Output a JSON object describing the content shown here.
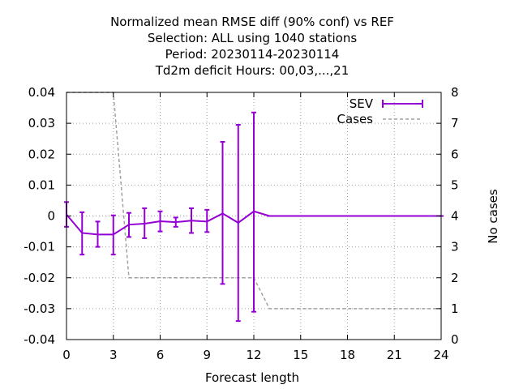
{
  "chart_data": {
    "type": "line",
    "title_lines": [
      "Normalized mean RMSE diff (90% conf) vs REF",
      "Selection: ALL using  1040 stations",
      "Period: 20230114-20230114",
      "Td2m deficit   Hours:  00,03,...,21"
    ],
    "xlabel": "Forecast length",
    "ylabel_right": "No cases",
    "xlim": [
      0,
      24
    ],
    "ylim": [
      -0.04,
      0.04
    ],
    "y2lim": [
      0,
      8
    ],
    "xticks": [
      "0",
      "3",
      "6",
      "9",
      "12",
      "15",
      "18",
      "21",
      "24"
    ],
    "yticks": [
      "0.04",
      "0.03",
      "0.02",
      "0.01",
      "0",
      "-0.01",
      "-0.02",
      "-0.03",
      "-0.04"
    ],
    "y2ticks": [
      "8",
      "7",
      "6",
      "5",
      "4",
      "3",
      "2",
      "1",
      "0"
    ],
    "grid": true,
    "legend_position": "top-right",
    "series": [
      {
        "name": "SEV",
        "color": "#9400d3",
        "axis": "left",
        "x": [
          0,
          1,
          2,
          3,
          4,
          5,
          6,
          7,
          8,
          9,
          10,
          11,
          12,
          13,
          14,
          15,
          16,
          17,
          18,
          19,
          20,
          21,
          22,
          23,
          24
        ],
        "y": [
          0.0005,
          -0.0055,
          -0.006,
          -0.006,
          -0.0028,
          -0.0025,
          -0.0017,
          -0.002,
          -0.0015,
          -0.0018,
          0.0008,
          -0.0022,
          0.0015,
          0,
          0,
          0,
          0,
          0,
          0,
          0,
          0,
          0,
          0,
          0,
          0
        ],
        "err_low": [
          -0.0035,
          -0.0125,
          -0.01,
          -0.0125,
          -0.0068,
          -0.0072,
          -0.005,
          -0.0035,
          -0.0055,
          -0.0052,
          -0.022,
          -0.034,
          -0.031,
          0,
          0,
          0,
          0,
          0,
          0,
          0,
          0,
          0,
          0,
          0,
          0
        ],
        "err_high": [
          0.0045,
          0.0012,
          -0.0018,
          0.0002,
          0.001,
          0.0025,
          0.0015,
          -0.0005,
          0.0025,
          0.002,
          0.024,
          0.0295,
          0.0335,
          0,
          0,
          0,
          0,
          0,
          0,
          0,
          0,
          0,
          0,
          0,
          0
        ]
      },
      {
        "name": "Cases",
        "color": "#a0a0a0",
        "axis": "right",
        "x": [
          0,
          3,
          4,
          12,
          13,
          24
        ],
        "y": [
          8,
          8,
          2,
          2,
          1,
          1
        ]
      }
    ]
  }
}
